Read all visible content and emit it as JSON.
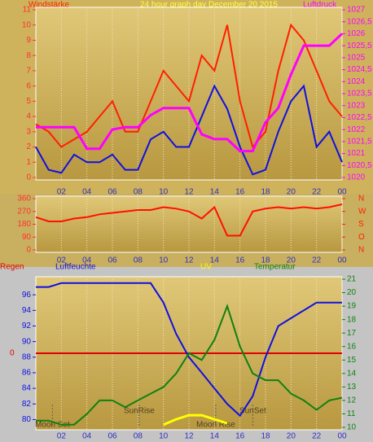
{
  "chart_data": [
    {
      "type": "line",
      "title": "24 hour graph day   December 20 2015",
      "y_label": "Windstärke",
      "y2_label": "Luftdruck",
      "x": [
        0,
        1,
        2,
        3,
        4,
        5,
        6,
        7,
        8,
        9,
        10,
        11,
        12,
        13,
        14,
        15,
        16,
        17,
        18,
        19,
        20,
        21,
        22,
        23,
        24
      ],
      "xlim": [
        0,
        24
      ],
      "xticks": [
        {
          "value": 2,
          "label": "02"
        },
        {
          "value": 4,
          "label": "04"
        },
        {
          "value": 6,
          "label": "06"
        },
        {
          "value": 8,
          "label": "08"
        },
        10,
        12,
        14,
        16,
        18,
        20,
        22,
        {
          "value": 24,
          "label": "00"
        }
      ],
      "ylim": [
        0,
        11
      ],
      "yticks": [
        0,
        1,
        2,
        3,
        4,
        5,
        6,
        7,
        8,
        9,
        10,
        11
      ],
      "y2lim": [
        1020,
        1027
      ],
      "y2ticks": [
        1020,
        {
          "value": 1020.5,
          "label": "1020,5"
        },
        1021,
        {
          "value": 1021.5,
          "label": "1021,5"
        },
        1022,
        {
          "value": 1022.5,
          "label": "1022,5"
        },
        1023,
        {
          "value": 1023.5,
          "label": "1023,5"
        },
        1024,
        {
          "value": 1024.5,
          "label": "1024,5"
        },
        1025,
        {
          "value": 1025.5,
          "label": "1025,5"
        },
        1026,
        {
          "value": 1026.5,
          "label": "1026,5"
        },
        1027
      ],
      "series": [
        {
          "color": "#ff2000",
          "values": [
            3.5,
            3,
            2,
            2.5,
            3,
            4,
            5,
            3,
            3,
            5,
            7,
            6,
            5,
            8,
            7,
            10,
            5,
            2,
            3,
            7,
            10,
            9,
            7,
            5,
            4
          ]
        },
        {
          "color": "#1010e0",
          "values": [
            2,
            0.5,
            0.3,
            1.5,
            1,
            1,
            1.5,
            0.5,
            0.5,
            2.5,
            3,
            2,
            2,
            4,
            6,
            4.5,
            2,
            0.2,
            0.5,
            3,
            5,
            6,
            2,
            3,
            1
          ]
        },
        {
          "color": "#ff00ff",
          "axis": "y2",
          "values": [
            1022.1,
            1022.1,
            1022.1,
            1022.1,
            1021.2,
            1021.2,
            1022,
            1022.1,
            1022.1,
            1022.6,
            1022.9,
            1022.9,
            1022.9,
            1021.8,
            1021.6,
            1021.6,
            1021.1,
            1021.1,
            1022.3,
            1022.9,
            1024.3,
            1025.5,
            1025.5,
            1025.5,
            1026
          ]
        }
      ]
    },
    {
      "type": "line",
      "x": [
        0,
        1,
        2,
        3,
        4,
        5,
        6,
        7,
        8,
        9,
        10,
        11,
        12,
        13,
        14,
        15,
        16,
        17,
        18,
        19,
        20,
        21,
        22,
        23,
        24
      ],
      "xlim": [
        0,
        24
      ],
      "xticks": [
        {
          "value": 2,
          "label": "02"
        },
        {
          "value": 4,
          "label": "04"
        },
        {
          "value": 6,
          "label": "06"
        },
        {
          "value": 8,
          "label": "08"
        },
        10,
        12,
        14,
        16,
        18,
        20,
        22,
        {
          "value": 24,
          "label": "00"
        }
      ],
      "ylim": [
        0,
        360
      ],
      "yticks": [
        0,
        90,
        180,
        270,
        360
      ],
      "y2lim": [
        0,
        360
      ],
      "y2ticks": [
        {
          "value": 360,
          "label": "N"
        },
        {
          "value": 270,
          "label": "W"
        },
        {
          "value": 180,
          "label": "S"
        },
        {
          "value": 90,
          "label": "O"
        },
        {
          "value": 0,
          "label": "N"
        }
      ],
      "series": [
        {
          "color": "#ff1000",
          "values": [
            230,
            200,
            200,
            220,
            230,
            250,
            260,
            270,
            280,
            280,
            300,
            290,
            270,
            220,
            300,
            100,
            100,
            270,
            290,
            300,
            290,
            300,
            290,
            300,
            320
          ]
        }
      ]
    },
    {
      "type": "line",
      "x": [
        0,
        1,
        2,
        3,
        4,
        5,
        6,
        7,
        8,
        9,
        10,
        11,
        12,
        13,
        14,
        15,
        16,
        17,
        18,
        19,
        20,
        21,
        22,
        23,
        24
      ],
      "xlim": [
        0,
        24
      ],
      "xticks": [
        {
          "value": 2,
          "label": "02"
        },
        {
          "value": 4,
          "label": "04"
        },
        {
          "value": 6,
          "label": "06"
        },
        {
          "value": 8,
          "label": "08"
        },
        10,
        12,
        14,
        16,
        18,
        20,
        22,
        {
          "value": 24,
          "label": "00"
        }
      ],
      "ylim": [
        79,
        98
      ],
      "yticks": [
        80,
        82,
        84,
        86,
        88,
        90,
        92,
        94,
        96
      ],
      "y2lim": [
        10,
        21
      ],
      "y2ticks": [
        10,
        11,
        12,
        13,
        14,
        15,
        16,
        17,
        18,
        19,
        20,
        21
      ],
      "y3lim": [
        -1,
        1
      ],
      "y3ticks": [
        0
      ],
      "series": [
        {
          "name": "Regen",
          "color": "#e00000",
          "axis": "y3",
          "values": [
            0,
            0,
            0,
            0,
            0,
            0,
            0,
            0,
            0,
            0,
            0,
            0,
            0,
            0,
            0,
            0,
            0,
            0,
            0,
            0,
            0,
            0,
            0,
            0,
            0
          ]
        },
        {
          "name": "Luftfeuchte",
          "color": "#1010e0",
          "values": [
            97,
            97,
            97.5,
            97.5,
            97.5,
            97.5,
            97.5,
            97.5,
            97.5,
            97.5,
            95,
            91,
            88,
            86,
            84,
            82,
            80.5,
            83,
            88,
            92,
            93,
            94,
            95,
            95,
            95
          ]
        },
        {
          "name": "UV",
          "color": "#ffff00",
          "axis": "y2",
          "values": [
            null,
            null,
            null,
            null,
            null,
            null,
            null,
            null,
            null,
            null,
            10.2,
            10.6,
            10.9,
            10.9,
            10.6,
            10.3,
            null,
            null,
            null,
            null,
            null,
            null,
            null,
            null,
            null
          ]
        },
        {
          "name": "Temperatur",
          "color": "#108010",
          "axis": "y2",
          "values": [
            10.5,
            10.5,
            10.2,
            10.2,
            11,
            12,
            12,
            11.5,
            12,
            12.5,
            13,
            14,
            15.5,
            15,
            16.5,
            19,
            16,
            14,
            13.5,
            13.5,
            12.5,
            12,
            11.3,
            12,
            12.2
          ]
        }
      ],
      "annotations": [
        {
          "text": "Moon Set",
          "x": 1.3
        },
        {
          "text": "SunRise",
          "x": 8.1
        },
        {
          "text": "Moon Rise",
          "x": 14.1
        },
        {
          "text": "SunSet",
          "x": 17
        }
      ]
    }
  ]
}
